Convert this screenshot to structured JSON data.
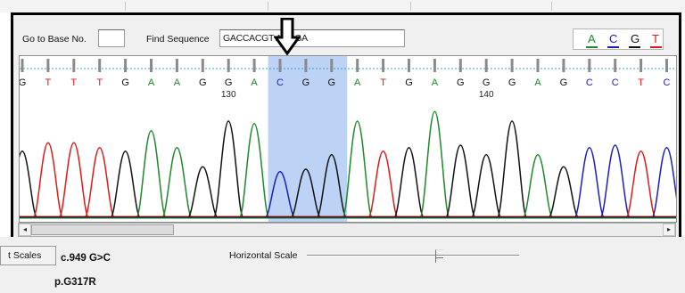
{
  "toolbar": {
    "goto_label": "Go to Base No.",
    "goto_value": "",
    "find_label": "Find Sequence",
    "find_value": "GACCACGT   AAGGA"
  },
  "legend": [
    {
      "base": "A",
      "color": "#1a8a2a"
    },
    {
      "base": "C",
      "color": "#1c1cc0"
    },
    {
      "base": "G",
      "color": "#111111"
    },
    {
      "base": "T",
      "color": "#e01818"
    }
  ],
  "trace": {
    "bases": [
      "G",
      "T",
      "T",
      "T",
      "G",
      "A",
      "A",
      "G",
      "G",
      "A",
      "C",
      "G",
      "G",
      "A",
      "T",
      "G",
      "A",
      "G",
      "G",
      "G",
      "A",
      "G",
      "C",
      "C",
      "T",
      "C"
    ],
    "position_labels": [
      {
        "text": "130",
        "base_index": 8
      },
      {
        "text": "140",
        "base_index": 18
      }
    ],
    "highlight": {
      "from_index": 10,
      "to_index": 12
    }
  },
  "bottom": {
    "scales_button": "t Scales",
    "mutation_c": "c.949 G>C",
    "mutation_p": "p.G317R",
    "horizontal_scale_label": "Horizontal Scale",
    "horizontal_scale_value": 0.62
  }
}
